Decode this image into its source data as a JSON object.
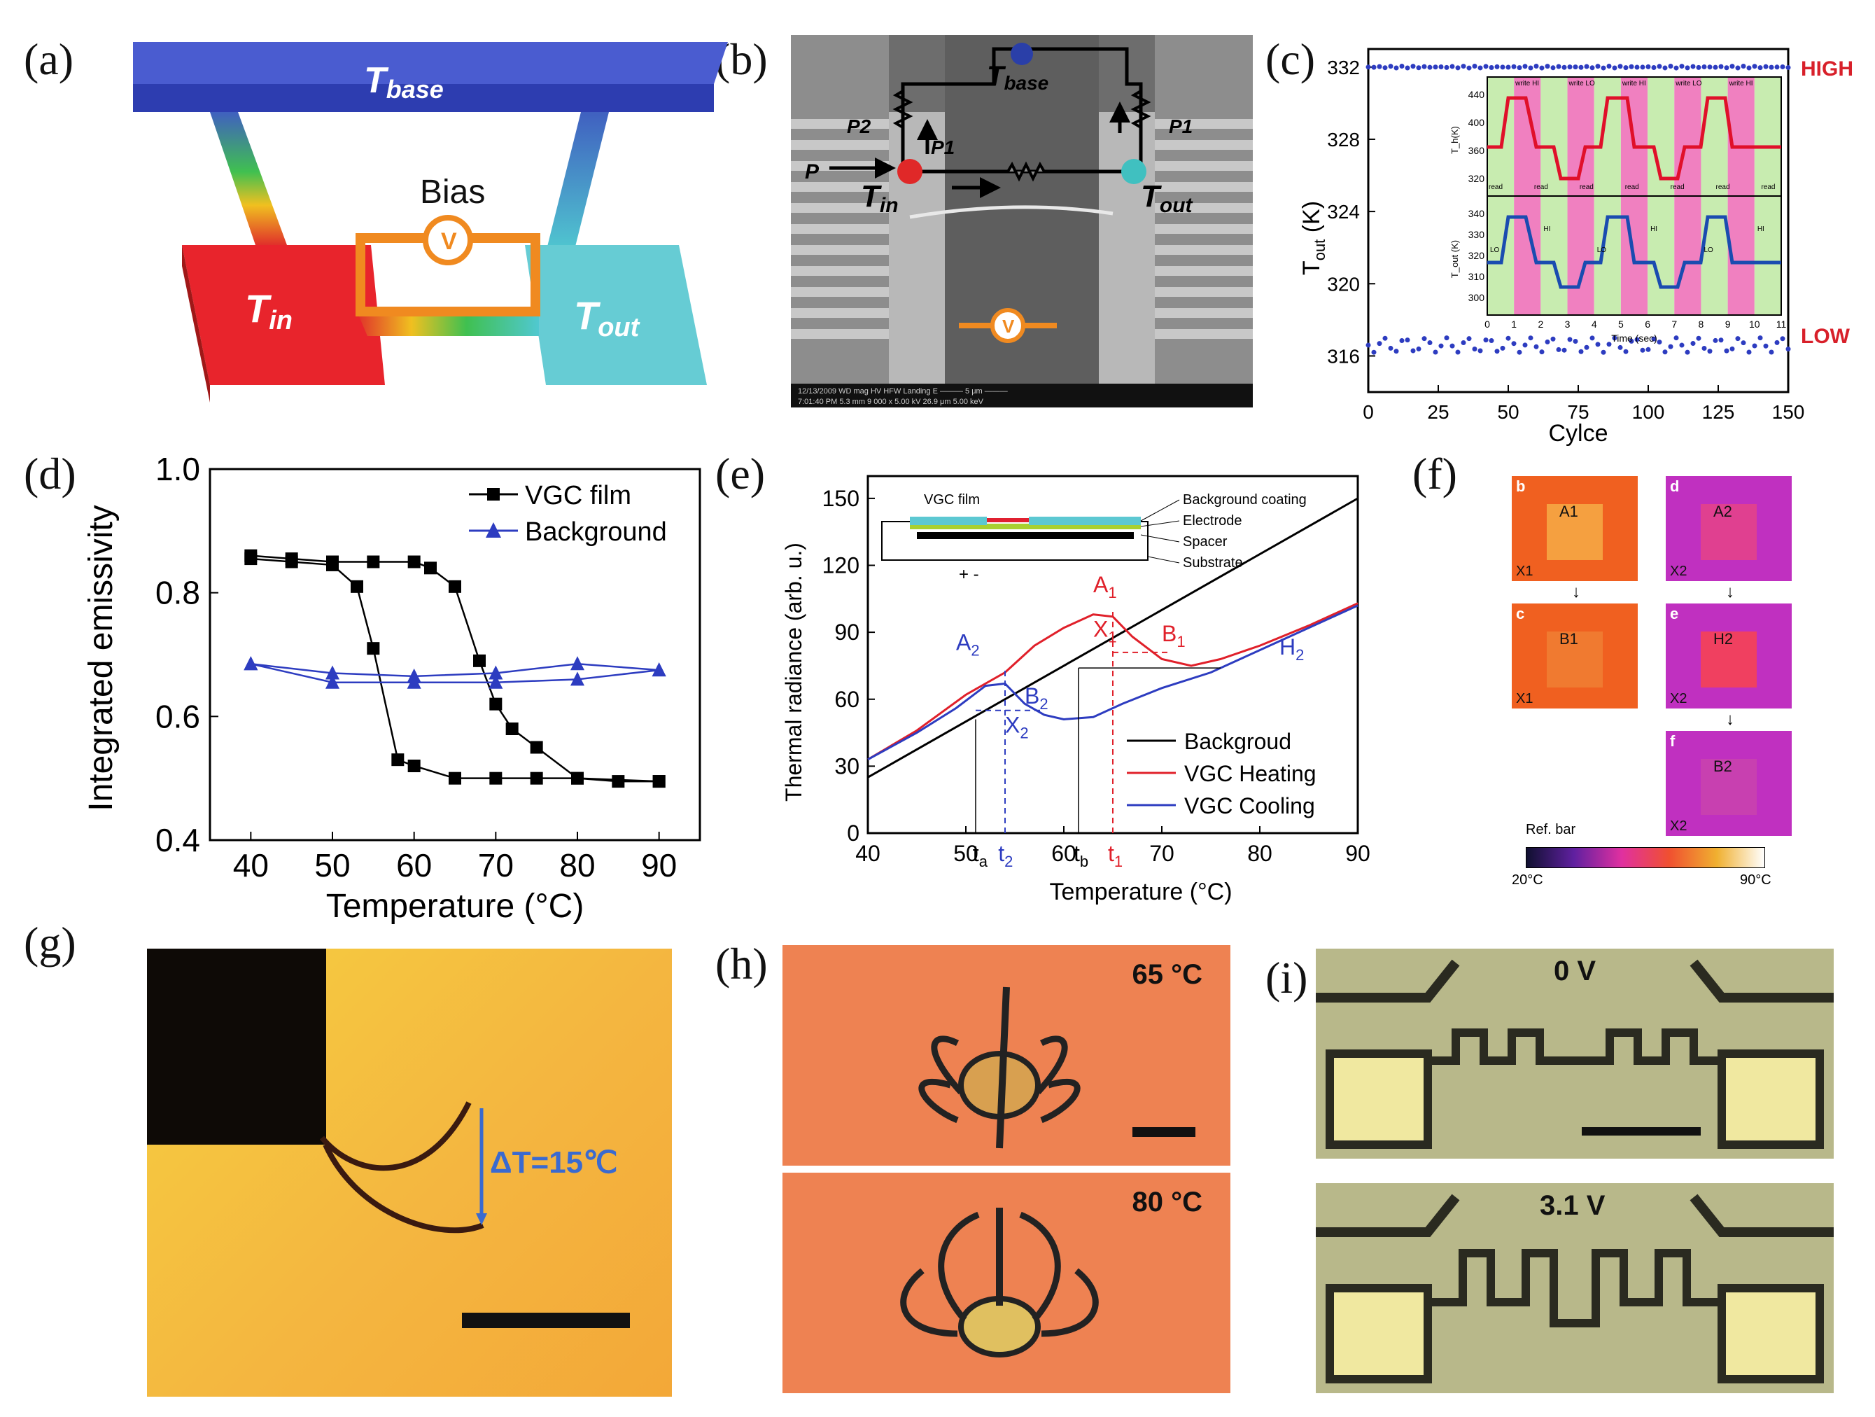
{
  "labels": {
    "a": "(a)",
    "b": "(b)",
    "c": "(c)",
    "d": "(d)",
    "e": "(e)",
    "f": "(f)",
    "g": "(g)",
    "h": "(h)",
    "i": "(i)"
  },
  "panel_a": {
    "t_base": "T",
    "t_base_sub": "base",
    "t_in": "T",
    "t_in_sub": "in",
    "t_out": "T",
    "t_out_sub": "out",
    "bias": "Bias",
    "v": "V"
  },
  "panel_b": {
    "t_base": "T",
    "t_base_sub": "base",
    "t_in": "T",
    "t_in_sub": "in",
    "t_out": "T",
    "t_out_sub": "out",
    "p": "P",
    "p1": "P1",
    "p2": "P2",
    "p1b": "P1",
    "v": "V",
    "footer": "12/13/2009  WD  mag  HV  HFW  Landing E  ——— 5 μm ———",
    "footer2": "7:01:40 PM  5.3 mm  9 000 x  5.00 kV  26.9 μm  5.00 keV"
  },
  "chart_c": {
    "type": "scatter",
    "ylabel": "T",
    "ylabel_sub": "out",
    "ylabel_unit": " (K)",
    "xlabel": "Cylce",
    "ylim": [
      314,
      333
    ],
    "xlim": [
      0,
      150
    ],
    "yticks": [
      "316",
      "320",
      "324",
      "328",
      "332"
    ],
    "xticks": [
      "0",
      "25",
      "50",
      "75",
      "100",
      "125",
      "150"
    ],
    "high_label": "HIGH",
    "low_label": "LOW",
    "high_value": 332,
    "low_value": 316.6,
    "inset": {
      "xlabel": "Time (sec)",
      "top_ylabel": "T_h(K)",
      "bottom_ylabel": "T_out (K)",
      "top_yticks": [
        "320",
        "360",
        "400",
        "440"
      ],
      "bottom_yticks": [
        "300",
        "310",
        "320",
        "330",
        "340"
      ],
      "xticks": [
        "0",
        "1",
        "2",
        "3",
        "4",
        "5",
        "6",
        "7",
        "8",
        "9",
        "10",
        "11"
      ],
      "write_labels": [
        "write HI",
        "write LO",
        "write HI",
        "write LO",
        "write HI"
      ],
      "read_labels": [
        "read",
        "read",
        "read",
        "read",
        "read",
        "read",
        "read"
      ],
      "state_labels": [
        "LO",
        "HI",
        "LO",
        "HI",
        "LO",
        "HI"
      ]
    }
  },
  "chart_d": {
    "type": "line",
    "xlabel": "Temperature (°C)",
    "ylabel": "Integrated emissivity",
    "xlim": [
      35,
      95
    ],
    "ylim": [
      0.4,
      1.0
    ],
    "yticks": [
      "0.4",
      "0.6",
      "0.8",
      "1.0"
    ],
    "xticks": [
      "40",
      "50",
      "60",
      "70",
      "80",
      "90"
    ],
    "series": [
      {
        "name": "VGC film",
        "heating": [
          [
            40,
            0.86
          ],
          [
            45,
            0.855
          ],
          [
            50,
            0.85
          ],
          [
            55,
            0.85
          ],
          [
            60,
            0.85
          ],
          [
            62,
            0.84
          ],
          [
            65,
            0.81
          ],
          [
            68,
            0.69
          ],
          [
            70,
            0.62
          ],
          [
            72,
            0.58
          ],
          [
            75,
            0.55
          ],
          [
            80,
            0.5
          ],
          [
            90,
            0.495
          ]
        ],
        "cooling": [
          [
            90,
            0.495
          ],
          [
            85,
            0.495
          ],
          [
            80,
            0.5
          ],
          [
            75,
            0.5
          ],
          [
            70,
            0.5
          ],
          [
            65,
            0.5
          ],
          [
            60,
            0.52
          ],
          [
            58,
            0.53
          ],
          [
            55,
            0.71
          ],
          [
            53,
            0.81
          ],
          [
            50,
            0.845
          ],
          [
            45,
            0.85
          ],
          [
            40,
            0.855
          ]
        ]
      },
      {
        "name": "Background",
        "heating": [
          [
            40,
            0.685
          ],
          [
            50,
            0.67
          ],
          [
            60,
            0.665
          ],
          [
            70,
            0.67
          ],
          [
            80,
            0.685
          ],
          [
            90,
            0.675
          ]
        ],
        "cooling": [
          [
            90,
            0.675
          ],
          [
            80,
            0.66
          ],
          [
            70,
            0.655
          ],
          [
            60,
            0.655
          ],
          [
            50,
            0.655
          ],
          [
            40,
            0.685
          ]
        ]
      }
    ]
  },
  "chart_e": {
    "type": "line",
    "xlabel": "Temperature (°C)",
    "ylabel": "Thermal radiance (arb. u.)",
    "xlim": [
      40,
      90
    ],
    "ylim": [
      0,
      160
    ],
    "yticks": [
      "0",
      "30",
      "60",
      "90",
      "120",
      "150"
    ],
    "xticks": [
      "40",
      "50",
      "60",
      "70",
      "80",
      "90"
    ],
    "legend": [
      "Backgroud",
      "VGC Heating",
      "VGC Cooling"
    ],
    "inset": [
      "VGC film",
      "Background coating",
      "Electrode",
      "Spacer",
      "Substrate"
    ],
    "inset_pm": "+ -",
    "points": {
      "A1": "A",
      "A1s": "1",
      "B1": "B",
      "B1s": "1",
      "X1": "X",
      "X1s": "1",
      "A2": "A",
      "A2s": "2",
      "B2": "B",
      "B2s": "2",
      "X2": "X",
      "X2s": "2",
      "H2": "H",
      "H2s": "2"
    },
    "tick_marks": {
      "ta": "t",
      "tas": "a",
      "t2": "t",
      "t2s": "2",
      "tb": "t",
      "tbs": "b",
      "t1": "t",
      "t1s": "1"
    },
    "background": [
      [
        40,
        25
      ],
      [
        90,
        150
      ]
    ],
    "heating": [
      [
        40,
        33
      ],
      [
        45,
        46
      ],
      [
        50,
        62
      ],
      [
        54,
        72
      ],
      [
        57,
        84
      ],
      [
        60,
        92
      ],
      [
        63,
        98
      ],
      [
        65,
        97
      ],
      [
        67,
        88
      ],
      [
        70,
        78
      ],
      [
        73,
        75
      ],
      [
        76,
        78
      ],
      [
        80,
        84
      ],
      [
        85,
        93
      ],
      [
        90,
        103
      ]
    ],
    "cooling": [
      [
        40,
        33
      ],
      [
        45,
        45
      ],
      [
        49,
        56
      ],
      [
        52,
        66
      ],
      [
        54,
        67
      ],
      [
        56,
        58
      ],
      [
        58,
        53
      ],
      [
        60,
        51
      ],
      [
        63,
        52
      ],
      [
        66,
        58
      ],
      [
        70,
        65
      ],
      [
        75,
        72
      ],
      [
        80,
        82
      ],
      [
        85,
        92
      ],
      [
        90,
        102
      ]
    ]
  },
  "panel_f": {
    "ref_bar": "Ref. bar",
    "scale_min": "20°C",
    "scale_max": "90°C",
    "cells": [
      {
        "id": "b",
        "label": "A1",
        "corner": "X1"
      },
      {
        "id": "d",
        "label": "A2",
        "corner": "X2"
      },
      {
        "id": "c",
        "label": "B1",
        "corner": "X1"
      },
      {
        "id": "e",
        "label": "H2",
        "corner": "X2"
      },
      {
        "id": "f",
        "label": "B2",
        "corner": "X2"
      }
    ]
  },
  "panel_g": {
    "delta_t": "ΔT=15℃"
  },
  "panel_h": {
    "top_temp": "65 °C",
    "bottom_temp": "80 °C"
  },
  "panel_i": {
    "top_voltage": "0 V",
    "bottom_voltage": "3.1 V"
  },
  "colors": {
    "blue": "#2233aa",
    "red": "#d8202a",
    "cyan": "#5cc8d2",
    "pink": "#f080c0",
    "green": "#b8e6a0"
  }
}
